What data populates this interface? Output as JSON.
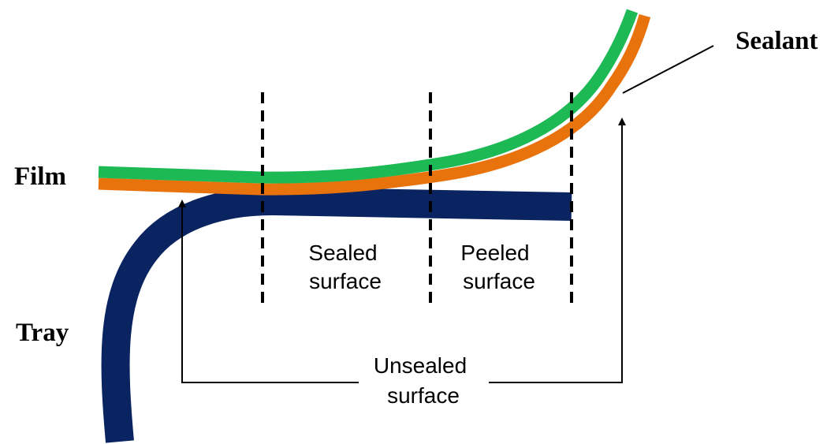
{
  "labels": {
    "sealant": "Sealant",
    "film": "Film",
    "tray": "Tray",
    "sealed_line1": "Sealed",
    "sealed_line2": "surface",
    "peeled_line1": "Peeled",
    "peeled_line2": "surface",
    "unsealed_line1": "Unsealed",
    "unsealed_line2": "surface"
  },
  "colors": {
    "film": "#1db954",
    "sealant": "#e8720c",
    "tray": "#0a2461",
    "lines": "#000000"
  }
}
